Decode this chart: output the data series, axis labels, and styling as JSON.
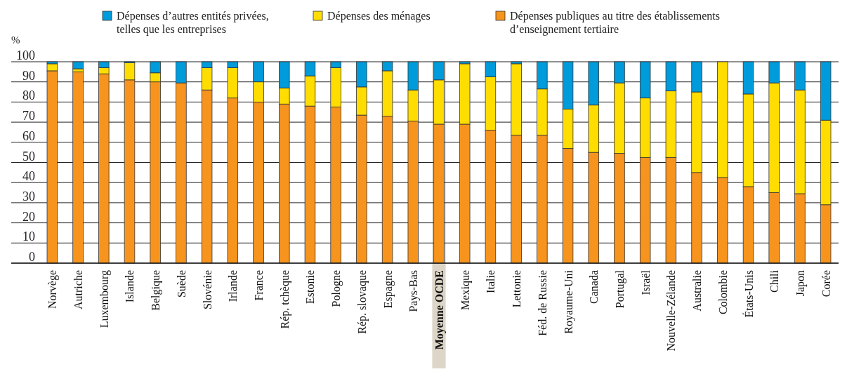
{
  "chart_data": {
    "type": "bar",
    "stacked": true,
    "ylabel": "%",
    "categories": [
      "Norvège",
      "Autriche",
      "Luxembourg",
      "Islande",
      "Belgique",
      "Suède",
      "Slovénie",
      "Irlande",
      "France",
      "Rép. tchèque",
      "Estonie",
      "Pologne",
      "Rép. slovaque",
      "Espagne",
      "Pays-Bas",
      "Moyenne OCDE",
      "Mexique",
      "Italie",
      "Lettonie",
      "Féd. de Russie",
      "Royaume-Uni",
      "Canada",
      "Portugal",
      "Israël",
      "Nouvelle-Zélande",
      "Australie",
      "Colombie",
      "États-Unis",
      "Chili",
      "Japon",
      "Corée"
    ],
    "series": [
      {
        "name": "Dépenses publiques au titre des établissements d’enseignement tertiaire",
        "color": "#f7941d",
        "values": [
          95.5,
          95,
          94,
          91,
          90,
          89.5,
          86,
          82,
          80,
          79,
          78,
          77.5,
          73.5,
          73,
          70.5,
          69,
          69,
          66,
          63.5,
          63.5,
          57,
          55,
          54.5,
          52.5,
          52.5,
          45,
          42.5,
          38,
          35,
          34.5,
          29
        ]
      },
      {
        "name": "Dépenses des ménages",
        "color": "#ffdd00",
        "values": [
          3.5,
          1.5,
          3,
          8.5,
          4.5,
          0,
          11,
          15,
          10,
          8,
          15,
          19.5,
          14,
          22.5,
          15.5,
          22,
          30,
          26.5,
          35.5,
          23,
          19.5,
          23.5,
          35,
          29.5,
          33,
          40,
          57.5,
          46,
          54.5,
          51.5,
          42
        ]
      },
      {
        "name": "Dépenses d’autres entités privées, telles que les entreprises",
        "color": "#009bdb",
        "values": [
          1,
          3.5,
          3,
          0.5,
          5.5,
          10.5,
          3,
          3,
          10,
          13,
          7,
          3,
          12.5,
          4.5,
          14,
          9,
          1,
          7.5,
          1,
          13.5,
          23.5,
          21.5,
          10.5,
          18,
          14.5,
          15,
          0,
          16,
          10.5,
          14,
          29
        ]
      }
    ],
    "ylim": [
      0,
      100
    ],
    "yticks": [
      0,
      10,
      20,
      30,
      40,
      50,
      60,
      70,
      80,
      90,
      100
    ],
    "grid": "y",
    "legend": "top",
    "bands": [
      {
        "axis": "x",
        "from": "Moyenne OCDE",
        "to": "Moyenne OCDE",
        "color": "#ddd5c7"
      }
    ]
  }
}
